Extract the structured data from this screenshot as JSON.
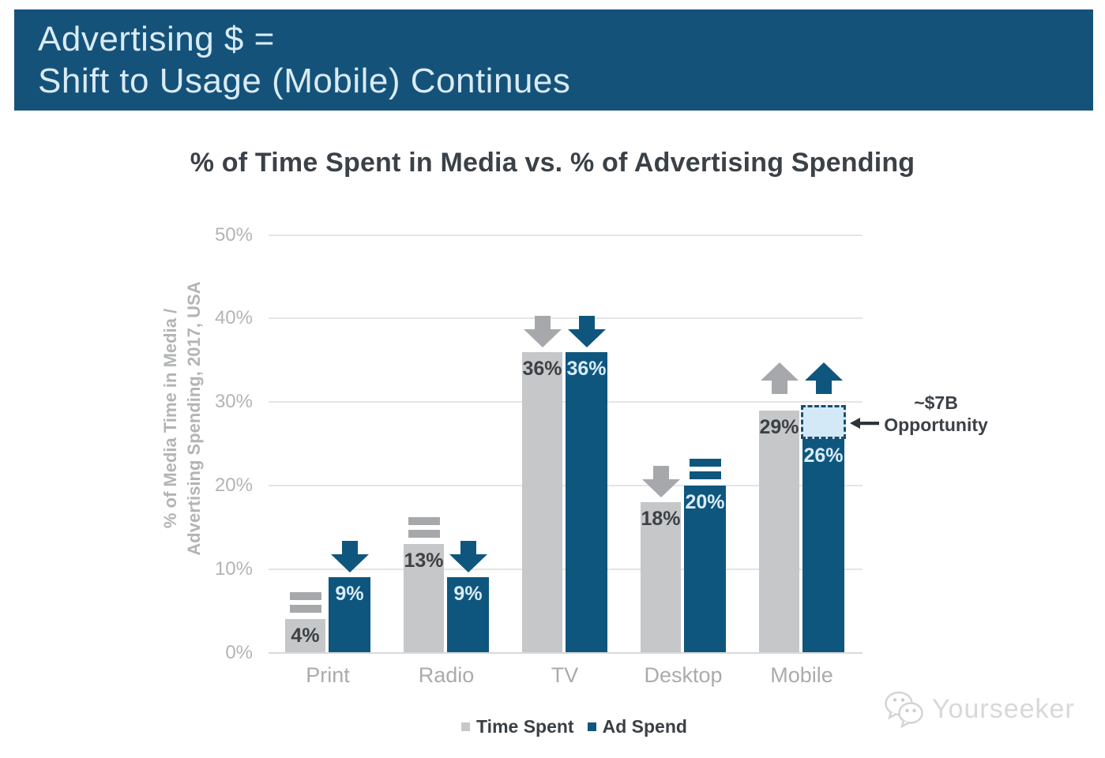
{
  "banner": {
    "line1": "Advertising $ =",
    "line2": "Shift to Usage (Mobile) Continues"
  },
  "chart_data": {
    "type": "bar",
    "title": "% of Time Spent in Media vs. % of Advertising Spending",
    "ylabel_line1": "% of Media Time in Media /",
    "ylabel_line2": "Advertising Spending, 2017, USA",
    "categories": [
      "Print",
      "Radio",
      "TV",
      "Desktop",
      "Mobile"
    ],
    "series": [
      {
        "name": "Time Spent",
        "color_key": "gray",
        "values": [
          4,
          13,
          36,
          18,
          29
        ],
        "trends": [
          "flat",
          "flat",
          "down",
          "down",
          "up"
        ]
      },
      {
        "name": "Ad Spend",
        "color_key": "blue",
        "values": [
          9,
          9,
          36,
          20,
          26
        ],
        "trends": [
          "down",
          "down",
          "down",
          "flat",
          "up"
        ]
      }
    ],
    "value_suffix": "%",
    "yticks": [
      "0%",
      "10%",
      "20%",
      "30%",
      "40%",
      "50%"
    ],
    "ylim": [
      0,
      50
    ],
    "grid": true,
    "legend_position": "bottom",
    "annotation": {
      "line1": "~$7B",
      "line2": "Opportunity",
      "target_category": "Mobile",
      "target_series": "Ad Spend"
    }
  },
  "watermark": {
    "text": "Yourseeker",
    "logo": "chat-bubbles-logo"
  },
  "colors": {
    "banner_bg": "#15527a",
    "banner_text": "#d9ebf5",
    "title_text": "#3a4147",
    "bar_gray": "#c6c7c9",
    "bar_blue": "#0f567e",
    "arrow_gray": "#a6a8ab",
    "arrow_blue": "#0f567e",
    "label_on_gray": "#3c4145",
    "label_on_blue": "#d9ecf8",
    "axis_text": "#b2b4b6",
    "category_text": "#a9abad",
    "gridline": "#e4e5e6",
    "baseline": "#d8d9da",
    "legend_text": "#3a4045",
    "opportunity_fill": "#d3e9f7",
    "opportunity_border": "#1c4e70",
    "pointer_dark": "#2e3338",
    "watermark_gray": "#d8d8d8"
  }
}
